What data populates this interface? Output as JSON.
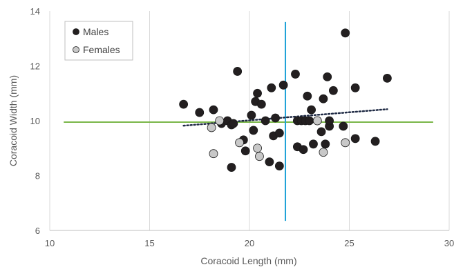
{
  "chart_data": {
    "type": "scatter",
    "title": "",
    "xlabel": "Coracoid Length (mm)",
    "ylabel": "Coracoid Width (mm)",
    "xlim": [
      10,
      30
    ],
    "ylim": [
      6,
      14
    ],
    "xticks": [
      "10",
      "15",
      "20",
      "25",
      "30"
    ],
    "yticks": [
      "6",
      "8",
      "10",
      "12",
      "14"
    ],
    "grid": "vertical",
    "legend": {
      "position": "top-left"
    },
    "colors": {
      "male_fill": "#231f20",
      "female_fill": "#c8c8c8",
      "marker_stroke": "#1a1a1a",
      "trend_line": "#1f2a44",
      "horizontal_ref": "#7ab648",
      "vertical_ref": "#1fa3d8",
      "gridline": "#d9d9d9"
    },
    "series": [
      {
        "name": "Males",
        "x": [
          16.7,
          17.5,
          18.2,
          18.6,
          18.9,
          19.1,
          19.4,
          19.2,
          19.1,
          19.7,
          19.8,
          20.1,
          20.2,
          20.3,
          20.4,
          20.6,
          20.8,
          21.0,
          21.1,
          21.2,
          21.3,
          21.5,
          21.5,
          21.7,
          22.3,
          22.4,
          22.4,
          22.6,
          22.7,
          22.8,
          22.9,
          23.0,
          23.1,
          23.2,
          23.4,
          23.6,
          23.7,
          23.8,
          23.9,
          24.0,
          24.0,
          24.2,
          24.7,
          24.8,
          25.3,
          25.3,
          26.3,
          26.9
        ],
        "y": [
          10.6,
          10.3,
          10.4,
          9.9,
          10.0,
          9.85,
          11.8,
          9.9,
          8.3,
          9.3,
          8.9,
          10.2,
          9.65,
          10.7,
          11.0,
          10.6,
          10.0,
          8.5,
          11.2,
          9.45,
          10.1,
          8.35,
          9.55,
          11.3,
          11.7,
          10.0,
          9.05,
          10.0,
          8.95,
          10.0,
          10.9,
          10.0,
          10.4,
          9.15,
          10.0,
          9.6,
          10.8,
          9.15,
          11.6,
          9.8,
          10.0,
          11.1,
          9.8,
          13.2,
          11.2,
          9.35,
          9.25,
          11.55
        ]
      },
      {
        "name": "Females",
        "x": [
          18.1,
          18.2,
          18.5,
          19.5,
          20.4,
          20.5,
          23.4,
          23.7,
          24.8
        ],
        "y": [
          9.75,
          8.8,
          10.0,
          9.2,
          9.0,
          8.7,
          10.0,
          8.85,
          9.2
        ]
      }
    ],
    "trendline": {
      "x": [
        16.7,
        26.9
      ],
      "y": [
        9.82,
        10.42
      ]
    },
    "reference_lines": {
      "horizontal": {
        "y": 9.95,
        "x_from": 10.7,
        "x_to": 29.2
      },
      "vertical": {
        "x": 21.8,
        "y_from": 6.35,
        "y_to": 13.6
      }
    }
  }
}
